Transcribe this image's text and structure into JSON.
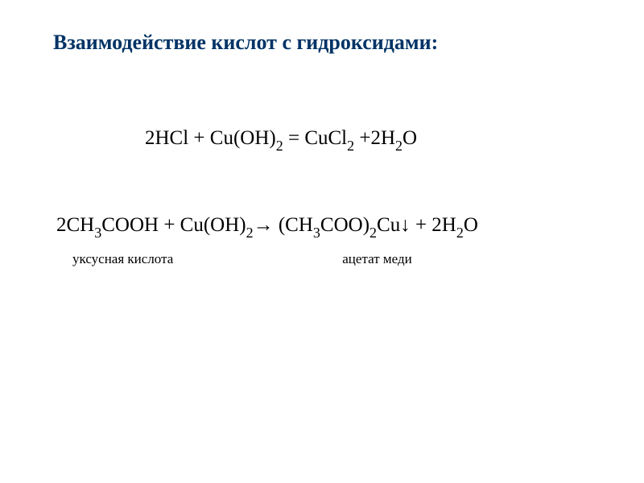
{
  "title": "Взаимодействие кислот с гидроксидами:",
  "eq1": {
    "p1": "2HCl + Cu(OH)",
    "s1": "2",
    "p2": " = CuCl",
    "s2": "2",
    "p3": " +2H",
    "s3": "2",
    "p4": "O"
  },
  "eq2": {
    "p1": "2CH",
    "s1": "3",
    "p2": "COOH + Cu(OH)",
    "s2": "2",
    "p3": "→ (CH",
    "s3": "3",
    "p4": "COO)",
    "s4": "2",
    "p5": "Cu↓ + 2H",
    "s5": "2",
    "p6": "O"
  },
  "labels": {
    "acid": "уксусная кислота",
    "product": "ацетат меди"
  },
  "colors": {
    "title_color": "#003366",
    "text_color": "#000000",
    "background": "#ffffff"
  },
  "typography": {
    "title_fontsize": 26,
    "equation_fontsize": 25,
    "label_fontsize": 17,
    "font_family": "Times New Roman"
  }
}
